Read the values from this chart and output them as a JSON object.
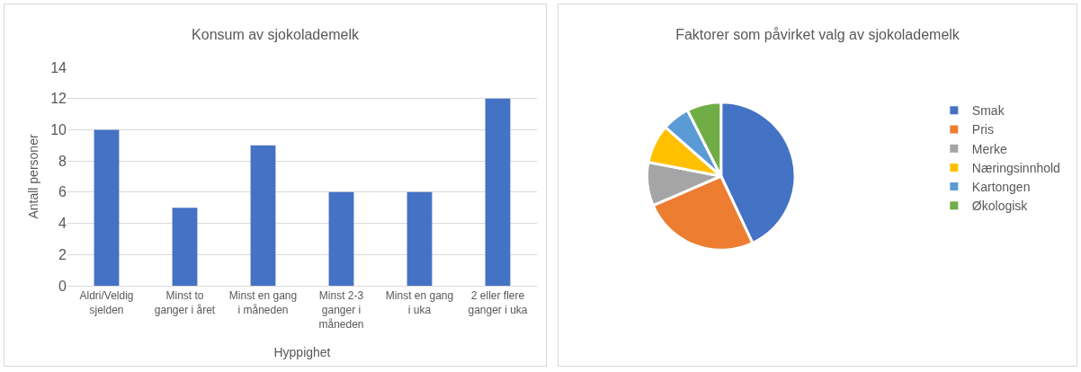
{
  "chart_data": [
    {
      "type": "bar",
      "title": "Konsum av sjokolademelk",
      "xlabel": "Hyppighet",
      "ylabel": "Antall personer",
      "categories": [
        "Aldri/Veldig sjelden",
        "Minst to ganger i året",
        "Minst en gang i måneden",
        "Minst 2-3 ganger i måneden",
        "Minst en gang i uka",
        "2 eller flere ganger i uka"
      ],
      "values": [
        10,
        5,
        9,
        6,
        6,
        12
      ],
      "color": "#4472c4",
      "ylim": [
        0,
        14
      ],
      "yticks": [
        0,
        2,
        4,
        6,
        8,
        10,
        12,
        14
      ],
      "grid": "y"
    },
    {
      "type": "pie",
      "title": "Faktorer som påvirket valg av sjokolademelk",
      "categories": [
        "Smak",
        "Pris",
        "Merke",
        "Næringsinnhold",
        "Kartongen",
        "Økologisk"
      ],
      "values": [
        43,
        25.5,
        9.5,
        8.5,
        6,
        7.5
      ],
      "colors": [
        "#4472c4",
        "#ed7d31",
        "#a5a5a5",
        "#ffc000",
        "#5b9bd5",
        "#70ad47"
      ],
      "legend": "right"
    }
  ]
}
